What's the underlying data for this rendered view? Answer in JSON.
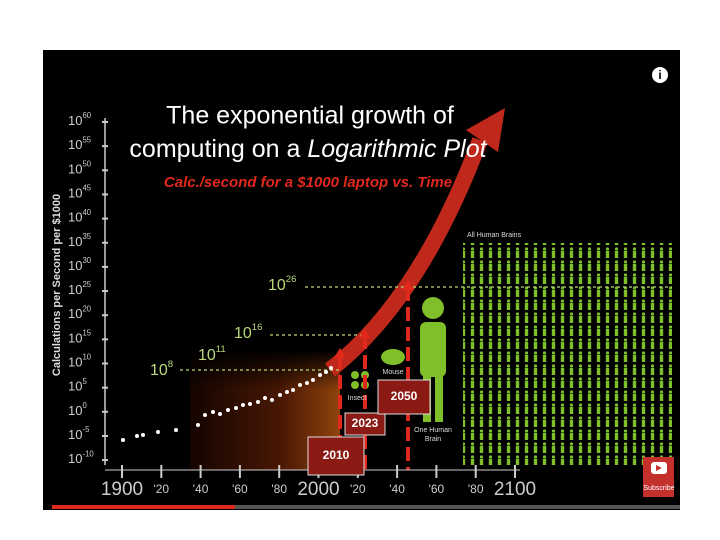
{
  "video": {
    "title_line1": "The exponential growth of",
    "title_line2_prefix": "computing on a",
    "title_line2_emphasis": "Logarithmic Plot",
    "subtitle": "Calc./second for a $1000 laptop vs. Time",
    "y_axis_label": "Calculations per Second per $1000",
    "y_ticks": [
      {
        "base": "10",
        "exponent": "60"
      },
      {
        "base": "10",
        "exponent": "55"
      },
      {
        "base": "10",
        "exponent": "50"
      },
      {
        "base": "10",
        "exponent": "45"
      },
      {
        "base": "10",
        "exponent": "40"
      },
      {
        "base": "10",
        "exponent": "35"
      },
      {
        "base": "10",
        "exponent": "30"
      },
      {
        "base": "10",
        "exponent": "25"
      },
      {
        "base": "10",
        "exponent": "20"
      },
      {
        "base": "10",
        "exponent": "15"
      },
      {
        "base": "10",
        "exponent": "10"
      },
      {
        "base": "10",
        "exponent": "5"
      },
      {
        "base": "10",
        "exponent": "0"
      },
      {
        "base": "10",
        "exponent": "-5"
      },
      {
        "base": "10",
        "exponent": "-10"
      }
    ],
    "x_ticks": [
      "1900",
      "'20",
      "'40",
      "'60",
      "'80",
      "2000",
      "'20",
      "'40",
      "'60",
      "'80",
      "2100"
    ],
    "levels": [
      {
        "base": "10",
        "exponent": "8"
      },
      {
        "base": "10",
        "exponent": "11"
      },
      {
        "base": "10",
        "exponent": "16"
      },
      {
        "base": "10",
        "exponent": "26"
      }
    ],
    "years": [
      "2010",
      "2023",
      "2050"
    ],
    "labels": {
      "insect": "Insect",
      "mouse": "Mouse",
      "one_brain_1": "One Human",
      "one_brain_2": "Brain",
      "all_brains": "All Human Brains"
    }
  },
  "player": {
    "subscribe": "Subscribe"
  }
}
